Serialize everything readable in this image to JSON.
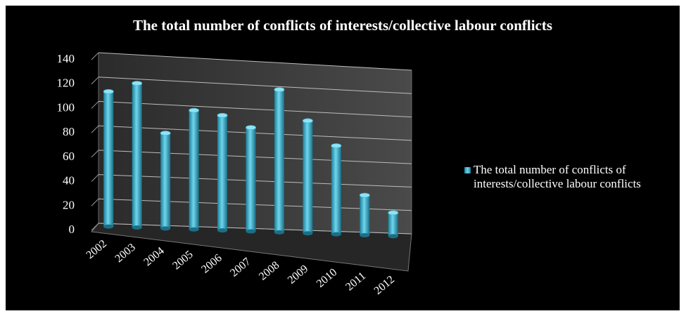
{
  "chart_data": {
    "type": "bar",
    "title": "The total number of conflicts of interests/collective labour conflicts",
    "xlabel": "",
    "ylabel": "",
    "categories": [
      "2002",
      "2003",
      "2004",
      "2005",
      "2006",
      "2007",
      "2008",
      "2009",
      "2010",
      "2011",
      "2012"
    ],
    "series": [
      {
        "name": "The total number of conflicts of interests/collective labour conflicts",
        "values": [
          111,
          119,
          79,
          99,
          96,
          87,
          120,
          95,
          75,
          34,
          20
        ]
      }
    ],
    "ylim": [
      0,
      140
    ],
    "yticks": [
      "0",
      "20",
      "40",
      "60",
      "80",
      "100",
      "120",
      "140"
    ],
    "grid": true,
    "legend_position": "right",
    "style": "3d-cylinder",
    "colors": {
      "background": "#000000",
      "wall": "#3c3c3c",
      "floor": "#2a2a2a",
      "bar_dark": "#1b7e97",
      "bar_light": "#6fd6ee",
      "text": "#ffffff"
    }
  }
}
